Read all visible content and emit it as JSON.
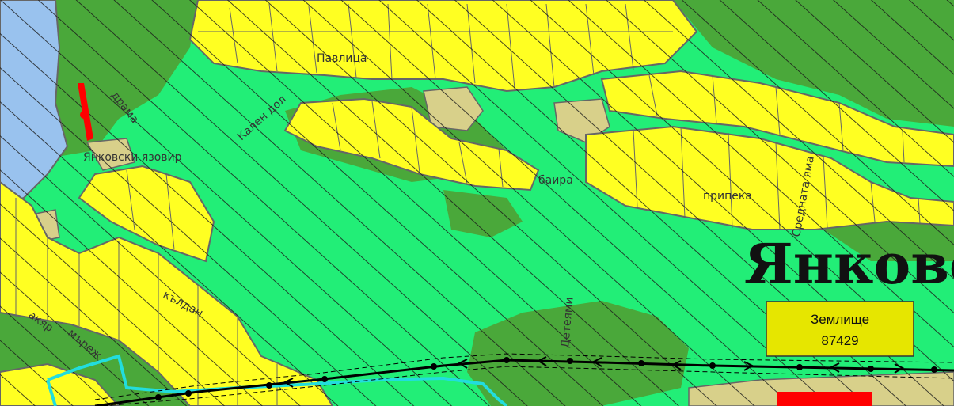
{
  "map": {
    "colors": {
      "meadow": "#22ee77",
      "forest": "#4aa83a",
      "field": "#ffff22",
      "sand": "#d8d08a",
      "water": "#99c2ee",
      "parcel_border": "#666666",
      "hatch": "#1a1a1a",
      "boundary": "#22dddd",
      "marker": "#ff0000"
    },
    "labels": {
      "pavlitsa": "Павлица",
      "drama": "драма",
      "kalen_dol": "Кален дол",
      "yankovski_yazovir": "Янковски язовир",
      "baira": "баира",
      "pripeka": "припека",
      "srednata_yama": "Средната яма",
      "deteyami": "Детеями",
      "mrezh": "мъреж",
      "kaldan": "кълдан",
      "akyar": "акяр"
    },
    "title": "Янкове",
    "land_box": {
      "line1": "Землище",
      "line2": "87429"
    }
  }
}
